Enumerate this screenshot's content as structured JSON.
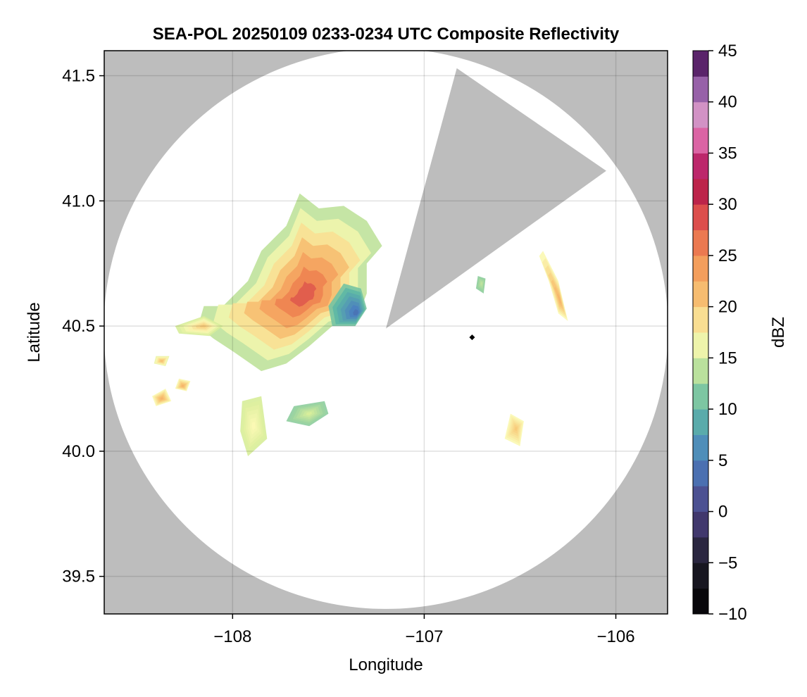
{
  "chart_data": {
    "type": "heatmap",
    "title": "SEA-POL 20250109 0233-0234 UTC Composite Reflectivity",
    "xlabel": "Longitude",
    "ylabel": "Latitude",
    "xlim": [
      -108.67,
      -105.73
    ],
    "ylim": [
      39.35,
      41.6
    ],
    "xticks": [
      -108,
      -107,
      -106
    ],
    "xtick_labels": [
      "−108",
      "−107",
      "−106"
    ],
    "yticks": [
      39.5,
      40.0,
      40.5,
      41.0,
      41.5
    ],
    "ytick_labels": [
      "39.5",
      "40.0",
      "40.5",
      "41.0",
      "41.5"
    ],
    "grid": true,
    "background_color": "#bdbdbd",
    "radar_coverage": {
      "center_lon": -107.2,
      "center_lat": 40.49,
      "radius_lat_deg": 1.12,
      "blocked_sector_vertices": [
        [
          -107.2,
          40.49
        ],
        [
          -106.83,
          41.53
        ],
        [
          -106.05,
          41.12
        ]
      ]
    },
    "radar_marker": {
      "lon": -106.75,
      "lat": 40.455
    },
    "colorbar": {
      "label": "dBZ",
      "range": [
        -10,
        45
      ],
      "ticks": [
        -10,
        -5,
        0,
        5,
        10,
        15,
        20,
        25,
        30,
        35,
        40,
        45
      ],
      "tick_labels": [
        "−10",
        "−5",
        "0",
        "5",
        "10",
        "15",
        "20",
        "25",
        "30",
        "35",
        "40",
        "45"
      ],
      "step": 2.5,
      "colormap": "Spectral (reversed) to dark purple",
      "color_stops": [
        {
          "v": -10,
          "c": "#000000"
        },
        {
          "v": -5,
          "c": "#1f1d2a"
        },
        {
          "v": 0,
          "c": "#4c4183"
        },
        {
          "v": 5,
          "c": "#4a7fc0"
        },
        {
          "v": 10,
          "c": "#5fb9a4"
        },
        {
          "v": 15,
          "c": "#d8ee9b"
        },
        {
          "v": 17,
          "c": "#fbf8b4"
        },
        {
          "v": 20,
          "c": "#f7cb7a"
        },
        {
          "v": 25,
          "c": "#f28f52"
        },
        {
          "v": 30,
          "c": "#d4384a"
        },
        {
          "v": 32.5,
          "c": "#a3104a"
        },
        {
          "v": 35,
          "c": "#d43d8c"
        },
        {
          "v": 38,
          "c": "#e59bc5"
        },
        {
          "v": 40,
          "c": "#b383c4"
        },
        {
          "v": 42.5,
          "c": "#7a3e8c"
        },
        {
          "v": 45,
          "c": "#3a0a48"
        }
      ]
    },
    "echo_regions": [
      {
        "name": "main-cell",
        "polygon": [
          [
            -108.05,
            40.58
          ],
          [
            -107.92,
            40.68
          ],
          [
            -107.85,
            40.8
          ],
          [
            -107.72,
            40.9
          ],
          [
            -107.65,
            41.03
          ],
          [
            -107.55,
            40.97
          ],
          [
            -107.42,
            40.98
          ],
          [
            -107.3,
            40.92
          ],
          [
            -107.22,
            40.82
          ],
          [
            -107.3,
            40.75
          ],
          [
            -107.3,
            40.63
          ],
          [
            -107.35,
            40.53
          ],
          [
            -107.48,
            40.5
          ],
          [
            -107.6,
            40.42
          ],
          [
            -107.72,
            40.35
          ],
          [
            -107.85,
            40.32
          ],
          [
            -108.0,
            40.4
          ],
          [
            -108.1,
            40.45
          ],
          [
            -108.18,
            40.5
          ],
          [
            -108.15,
            40.58
          ]
        ],
        "core": {
          "lon": -107.62,
          "lat": 40.62,
          "dbz": 28
        },
        "edge_dbz": 14
      },
      {
        "name": "low-echo-east-edge",
        "polygon": [
          [
            -107.5,
            40.58
          ],
          [
            -107.42,
            40.67
          ],
          [
            -107.33,
            40.65
          ],
          [
            -107.3,
            40.57
          ],
          [
            -107.36,
            40.5
          ],
          [
            -107.48,
            40.5
          ]
        ],
        "core": {
          "lon": -107.35,
          "lat": 40.55,
          "dbz": 4
        },
        "edge_dbz": 11
      },
      {
        "name": "west-tail",
        "polygon": [
          [
            -108.3,
            40.5
          ],
          [
            -108.15,
            40.54
          ],
          [
            -108.05,
            40.5
          ],
          [
            -108.12,
            40.46
          ],
          [
            -108.28,
            40.47
          ]
        ],
        "core": {
          "lon": -108.15,
          "lat": 40.5,
          "dbz": 20
        },
        "edge_dbz": 15
      },
      {
        "name": "southwest-cell-1",
        "polygon": [
          [
            -108.42,
            40.22
          ],
          [
            -108.35,
            40.25
          ],
          [
            -108.32,
            40.2
          ],
          [
            -108.4,
            40.18
          ]
        ],
        "core": {
          "lon": -108.37,
          "lat": 40.21,
          "dbz": 22
        },
        "edge_dbz": 17
      },
      {
        "name": "southwest-cell-2",
        "polygon": [
          [
            -108.28,
            40.29
          ],
          [
            -108.22,
            40.28
          ],
          [
            -108.24,
            40.24
          ],
          [
            -108.3,
            40.25
          ]
        ],
        "core": {
          "lon": -108.26,
          "lat": 40.26,
          "dbz": 22
        },
        "edge_dbz": 17
      },
      {
        "name": "southwest-cell-3",
        "polygon": [
          [
            -108.4,
            40.38
          ],
          [
            -108.33,
            40.38
          ],
          [
            -108.35,
            40.34
          ],
          [
            -108.41,
            40.35
          ]
        ],
        "core": {
          "lon": -108.37,
          "lat": 40.36,
          "dbz": 21
        },
        "edge_dbz": 16
      },
      {
        "name": "south-cluster",
        "polygon": [
          [
            -107.68,
            40.18
          ],
          [
            -107.52,
            40.2
          ],
          [
            -107.5,
            40.15
          ],
          [
            -107.6,
            40.1
          ],
          [
            -107.72,
            40.12
          ]
        ],
        "core": {
          "lon": -107.6,
          "lat": 40.15,
          "dbz": 15
        },
        "edge_dbz": 12
      },
      {
        "name": "south-fragment",
        "polygon": [
          [
            -107.95,
            40.2
          ],
          [
            -107.85,
            40.22
          ],
          [
            -107.82,
            40.05
          ],
          [
            -107.92,
            39.98
          ],
          [
            -107.96,
            40.08
          ]
        ],
        "core": {
          "lon": -107.89,
          "lat": 40.1,
          "dbz": 17
        },
        "edge_dbz": 15
      },
      {
        "name": "east-band",
        "polygon": [
          [
            -106.38,
            40.8
          ],
          [
            -106.3,
            40.68
          ],
          [
            -106.25,
            40.52
          ],
          [
            -106.3,
            40.55
          ],
          [
            -106.35,
            40.68
          ],
          [
            -106.4,
            40.78
          ]
        ],
        "core": {
          "lon": -106.29,
          "lat": 40.6,
          "dbz": 22
        },
        "edge_dbz": 17
      },
      {
        "name": "southeast-cell",
        "polygon": [
          [
            -106.55,
            40.15
          ],
          [
            -106.48,
            40.12
          ],
          [
            -106.5,
            40.02
          ],
          [
            -106.58,
            40.05
          ]
        ],
        "core": {
          "lon": -106.52,
          "lat": 40.09,
          "dbz": 20
        },
        "edge_dbz": 17
      },
      {
        "name": "small-east-speck",
        "polygon": [
          [
            -106.72,
            40.7
          ],
          [
            -106.68,
            40.69
          ],
          [
            -106.69,
            40.63
          ],
          [
            -106.73,
            40.65
          ]
        ],
        "core": {
          "lon": -106.7,
          "lat": 40.67,
          "dbz": 14
        },
        "edge_dbz": 12
      }
    ]
  }
}
